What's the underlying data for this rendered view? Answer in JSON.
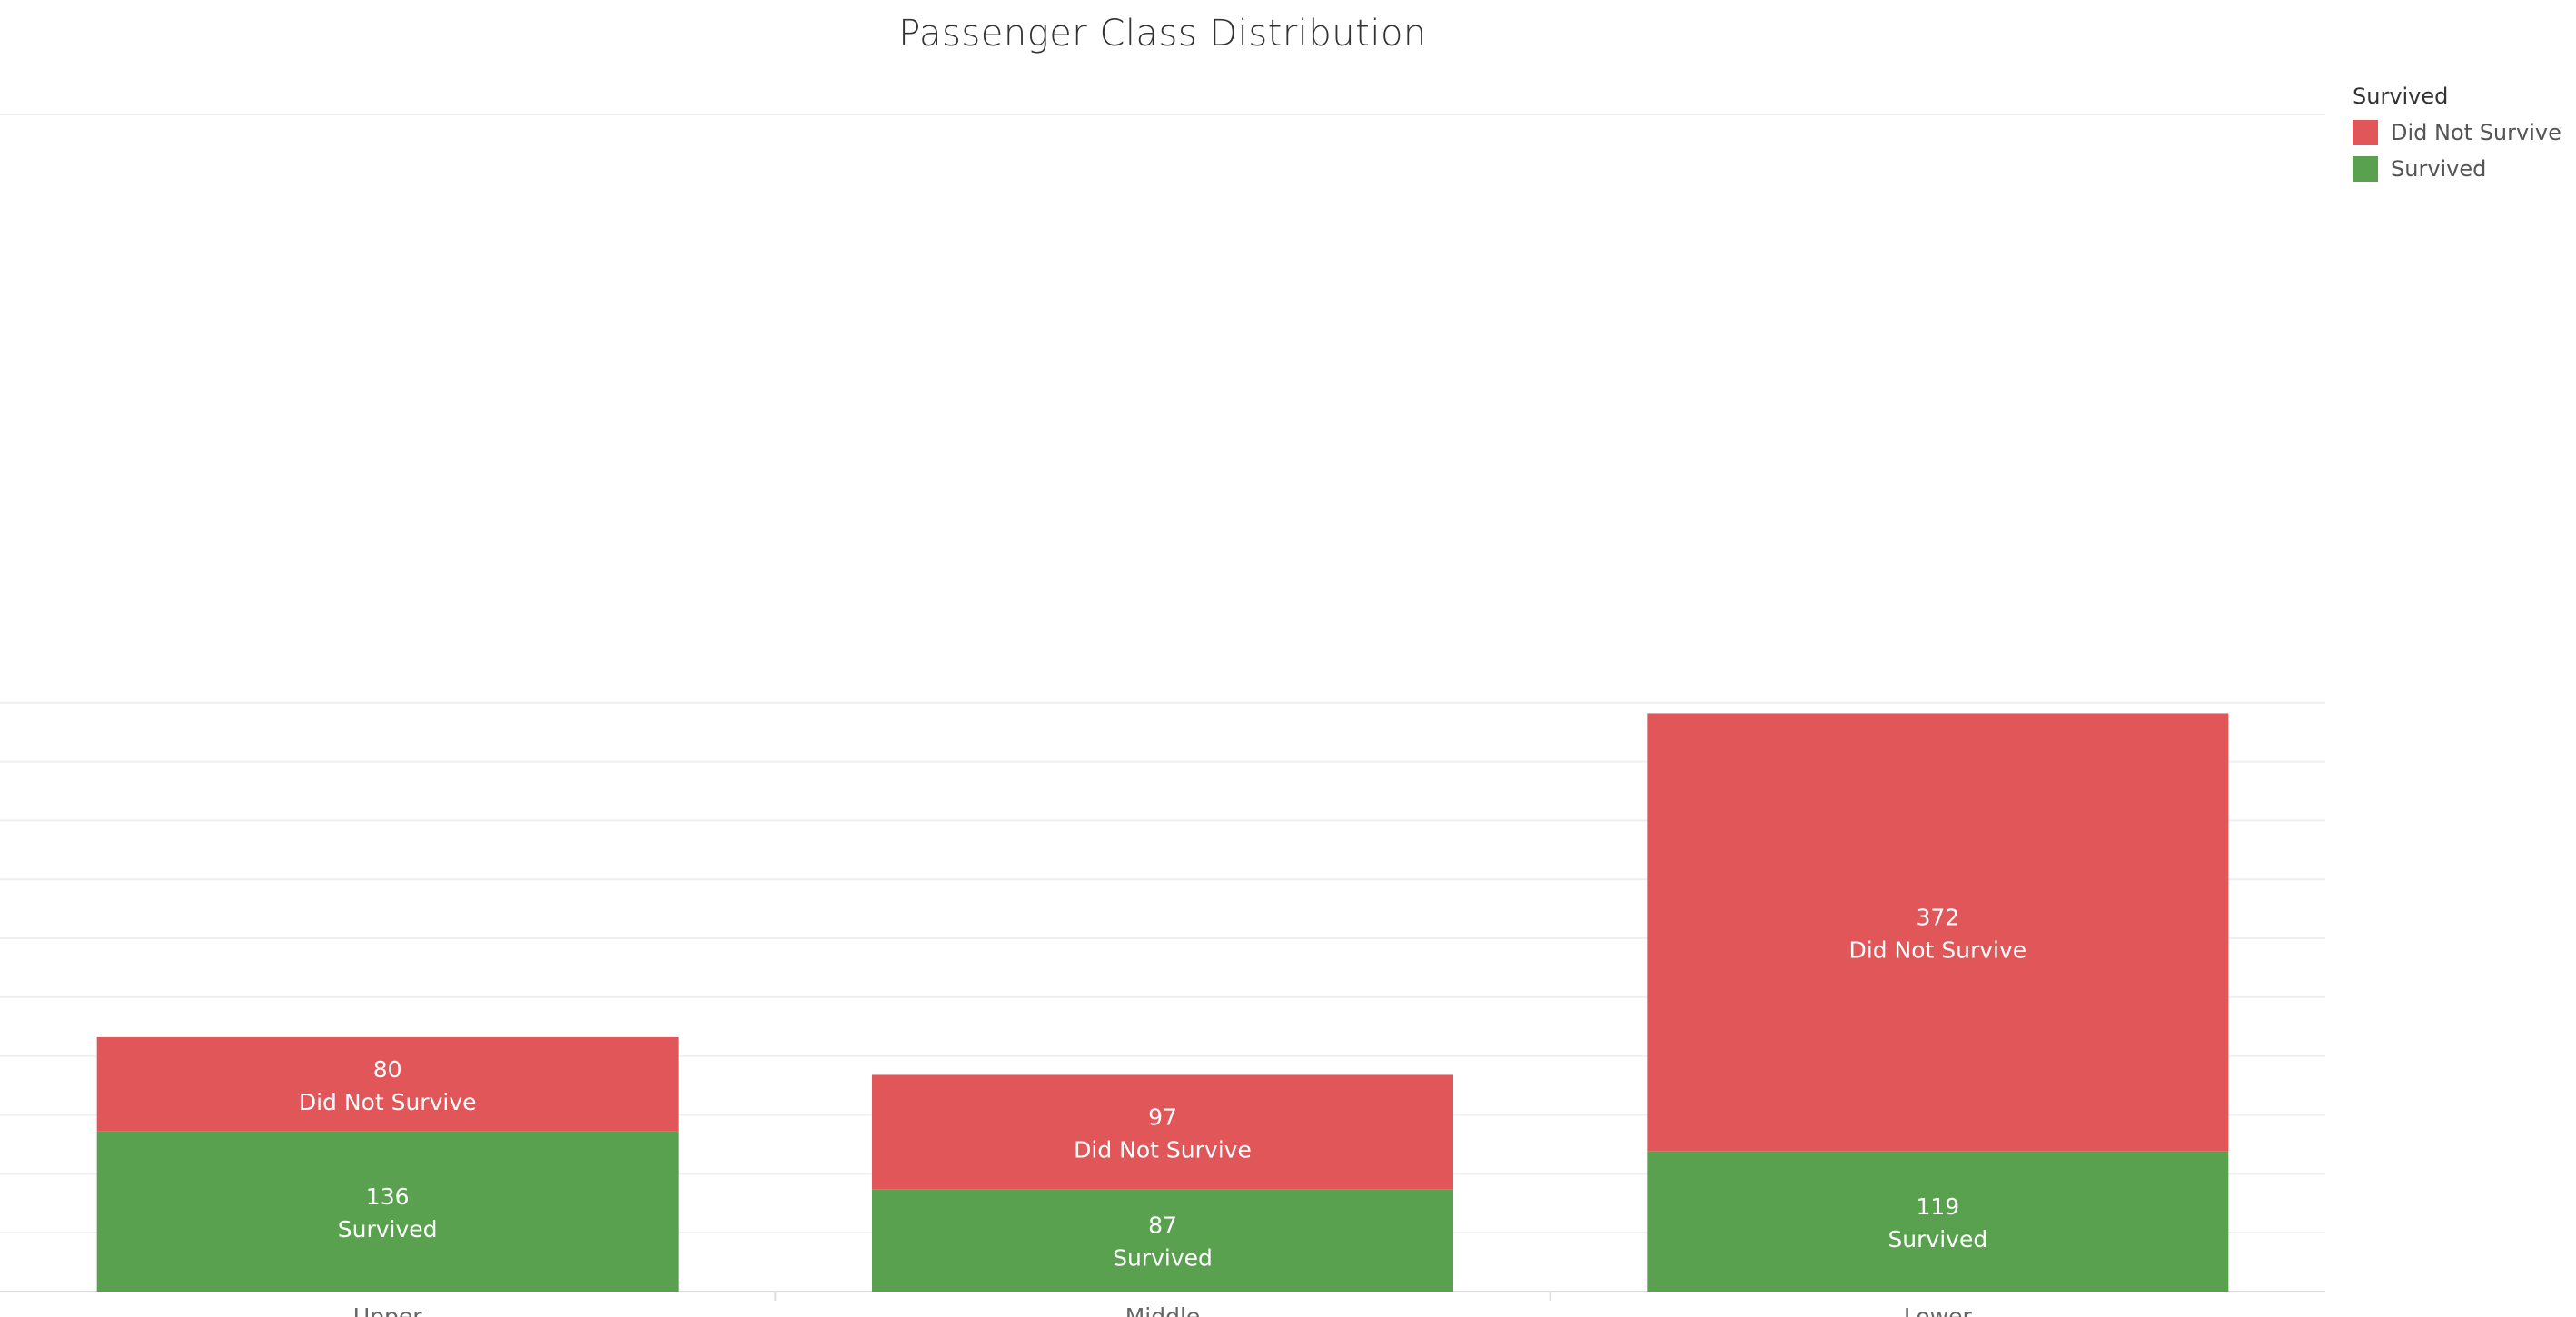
{
  "chart_data": {
    "type": "bar",
    "stacked": true,
    "title": "Passenger Class Distribution",
    "xlabel": "",
    "ylabel": "",
    "categories": [
      "Upper",
      "Middle",
      "Lower"
    ],
    "series": [
      {
        "name": "Survived",
        "values": [
          136,
          87,
          119
        ],
        "color": "#59A14F"
      },
      {
        "name": "Did Not Survive",
        "values": [
          80,
          97,
          372
        ],
        "color": "#E15759"
      }
    ],
    "ylim": [
      0,
      500
    ],
    "grid": true,
    "show_y_axis_labels": false,
    "legend": {
      "title": "Survived",
      "placement": "top-right",
      "items": [
        {
          "label": "Did Not Survive",
          "color": "#E15759"
        },
        {
          "label": "Survived",
          "color": "#59A14F"
        }
      ]
    }
  }
}
